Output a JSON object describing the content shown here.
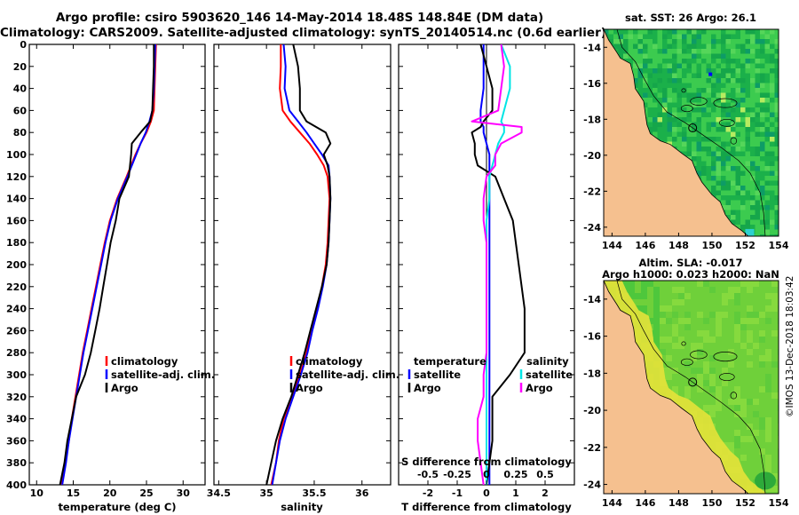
{
  "header": {
    "line1": "Argo profile: csiro 5903620_146 14-May-2014 18.48S 148.84E (DM data)",
    "line2": "Climatology: CARS2009. Satellite-adjusted climatology: synTS_20140514.nc (0.6d earlier)"
  },
  "credit": "©IMOS 13-Dec-2018 18:03:42",
  "colors": {
    "climatology": "#ff0000",
    "satellite": "#0000ff",
    "argo": "#000000",
    "sal_satellite": "#00e5e5",
    "sal_argo": "#ff00ff",
    "land": "#f5c08f",
    "ocean_sst": "#1bb04a",
    "ocean_sla": "#6fd03a"
  },
  "chart_data": [
    {
      "type": "line",
      "name": "temperature",
      "xlabel": "temperature (deg C)",
      "xlim": [
        9,
        33
      ],
      "ylim": [
        0,
        400
      ],
      "y_inverted": true,
      "xticks": [
        10,
        15,
        20,
        25,
        30
      ],
      "yticks": [
        0,
        20,
        40,
        60,
        80,
        100,
        120,
        140,
        160,
        180,
        200,
        220,
        240,
        260,
        280,
        300,
        320,
        340,
        360,
        380,
        400
      ],
      "depth": [
        0,
        20,
        40,
        60,
        70,
        80,
        90,
        100,
        120,
        140,
        160,
        180,
        200,
        220,
        240,
        260,
        280,
        300,
        320,
        340,
        360,
        380,
        400
      ],
      "series": [
        {
          "name": "climatology",
          "legend": "climatology",
          "color": "#ff0000",
          "values": [
            26.3,
            26.2,
            26.1,
            26.0,
            25.6,
            25.0,
            24.2,
            23.5,
            22.3,
            21.0,
            20.0,
            19.3,
            18.7,
            18.1,
            17.5,
            16.9,
            16.3,
            15.8,
            15.3,
            14.8,
            14.4,
            13.9,
            13.4
          ]
        },
        {
          "name": "satellite",
          "legend": "satellite-adj. clim.",
          "color": "#0000ff",
          "values": [
            26.2,
            26.1,
            26.0,
            25.8,
            25.4,
            24.9,
            24.2,
            23.6,
            22.4,
            21.1,
            20.1,
            19.4,
            18.8,
            18.2,
            17.6,
            17.0,
            16.4,
            15.9,
            15.4,
            14.9,
            14.4,
            14.0,
            13.5
          ]
        },
        {
          "name": "argo",
          "legend": "Argo",
          "color": "#000000",
          "values": [
            26.0,
            26.0,
            25.9,
            25.8,
            25.5,
            24.2,
            23.0,
            22.9,
            22.6,
            21.3,
            20.8,
            20.1,
            19.6,
            19.1,
            18.6,
            18.0,
            17.4,
            16.6,
            15.4,
            14.8,
            14.2,
            13.8,
            13.2
          ]
        }
      ]
    },
    {
      "type": "line",
      "name": "salinity",
      "xlabel": "salinity",
      "xlim": [
        34.45,
        36.3
      ],
      "ylim": [
        0,
        400
      ],
      "y_inverted": true,
      "xticks": [
        34.5,
        35,
        35.5,
        36
      ],
      "depth": [
        0,
        20,
        40,
        60,
        70,
        80,
        90,
        100,
        110,
        120,
        140,
        160,
        180,
        200,
        220,
        240,
        260,
        280,
        300,
        320,
        340,
        360,
        380,
        400
      ],
      "series": [
        {
          "name": "climatology",
          "legend": "climatology",
          "color": "#ff0000",
          "values": [
            35.15,
            35.15,
            35.14,
            35.17,
            35.25,
            35.35,
            35.45,
            35.53,
            35.6,
            35.64,
            35.66,
            35.65,
            35.64,
            35.62,
            35.58,
            35.53,
            35.47,
            35.42,
            35.35,
            35.27,
            35.18,
            35.13,
            35.1,
            35.05
          ]
        },
        {
          "name": "satellite",
          "legend": "satellite-adj. clim.",
          "color": "#0000ff",
          "values": [
            35.18,
            35.2,
            35.19,
            35.24,
            35.33,
            35.42,
            35.5,
            35.58,
            35.65,
            35.66,
            35.67,
            35.66,
            35.65,
            35.63,
            35.59,
            35.54,
            35.48,
            35.43,
            35.36,
            35.28,
            35.2,
            35.14,
            35.1,
            35.06
          ]
        },
        {
          "name": "argo",
          "legend": "Argo",
          "color": "#000000",
          "values": [
            35.28,
            35.33,
            35.35,
            35.35,
            35.42,
            35.62,
            35.67,
            35.6,
            35.64,
            35.66,
            35.67,
            35.66,
            35.65,
            35.63,
            35.58,
            35.52,
            35.46,
            35.4,
            35.33,
            35.26,
            35.17,
            35.1,
            35.05,
            35.0
          ]
        }
      ]
    },
    {
      "type": "line",
      "name": "difference",
      "xlabel": "T difference from climatology",
      "secondary_label": "S difference from climatology",
      "xlim": [
        -3,
        3
      ],
      "ylim": [
        0,
        400
      ],
      "y_inverted": true,
      "xticks": [
        -2,
        -1,
        0,
        1,
        2
      ],
      "secondary_ticks": [
        {
          "label": "-0.5",
          "x": -2
        },
        {
          "label": "-0.25",
          "x": -1
        },
        {
          "label": "0",
          "x": 0
        },
        {
          "label": "0.25",
          "x": 1
        },
        {
          "label": "0.5",
          "x": 2
        }
      ],
      "depth": [
        0,
        20,
        40,
        60,
        70,
        75,
        80,
        90,
        100,
        110,
        120,
        140,
        160,
        180,
        200,
        220,
        240,
        260,
        280,
        300,
        320,
        340,
        360,
        380,
        400
      ],
      "legend_left_title": "temperature",
      "legend_right_title": "salinity",
      "series": [
        {
          "name": "T satellite",
          "legend": "satellite",
          "color": "#0000ff",
          "values": [
            -0.1,
            -0.1,
            -0.1,
            -0.2,
            -0.2,
            -0.1,
            -0.1,
            0.0,
            0.1,
            0.1,
            0.1,
            0.1,
            0.1,
            0.1,
            0.1,
            0.1,
            0.1,
            0.1,
            0.1,
            0.1,
            0.1,
            0.1,
            0.1,
            0.1,
            0.1
          ]
        },
        {
          "name": "T Argo",
          "legend": "Argo",
          "color": "#000000",
          "values": [
            -0.2,
            0.0,
            0.2,
            0.2,
            -0.1,
            -0.2,
            -0.5,
            -0.4,
            -0.4,
            -0.3,
            0.3,
            0.6,
            0.9,
            1.0,
            1.1,
            1.2,
            1.3,
            1.3,
            1.3,
            0.8,
            0.2,
            0.2,
            0.2,
            0.1,
            0.0
          ]
        },
        {
          "name": "S satellite",
          "legend": "satellite",
          "color": "#00e5e5",
          "values": [
            0.5,
            0.8,
            0.8,
            0.6,
            0.5,
            0.6,
            0.6,
            0.4,
            0.3,
            0.2,
            0.1,
            0.1,
            0.0,
            0.0,
            0.0,
            0.0,
            0.0,
            0.0,
            0.0,
            0.0,
            0.0,
            0.0,
            0.0,
            0.0,
            0.0
          ]
        },
        {
          "name": "S Argo",
          "legend": "Argo",
          "color": "#ff00ff",
          "values": [
            0.5,
            0.6,
            0.5,
            0.4,
            -0.5,
            1.2,
            1.2,
            0.5,
            0.3,
            0.3,
            0.0,
            -0.1,
            -0.1,
            0.0,
            0.0,
            0.0,
            0.0,
            0.0,
            0.0,
            -0.1,
            -0.1,
            -0.3,
            -0.3,
            -0.2,
            -0.1
          ]
        }
      ]
    },
    {
      "type": "heatmap",
      "name": "sst-map",
      "title": "sat. SST: 26 Argo: 26.1",
      "xlim": [
        143.5,
        154
      ],
      "ylim": [
        -24.5,
        -13
      ],
      "xticks": [
        144,
        146,
        148,
        150,
        152,
        154
      ],
      "yticks": [
        -14,
        -16,
        -18,
        -20,
        -22,
        -24
      ],
      "argo_position": {
        "lon": 148.84,
        "lat": -18.48
      }
    },
    {
      "type": "heatmap",
      "name": "sla-map",
      "title": "Altim. SLA: -0.017",
      "subtitle": "Argo h1000: 0.023 h2000: NaN",
      "xlim": [
        143.5,
        154
      ],
      "ylim": [
        -24.5,
        -13
      ],
      "xticks": [
        144,
        146,
        148,
        150,
        152,
        154
      ],
      "yticks": [
        -14,
        -16,
        -18,
        -20,
        -22,
        -24
      ],
      "argo_position": {
        "lon": 148.84,
        "lat": -18.48
      }
    }
  ]
}
